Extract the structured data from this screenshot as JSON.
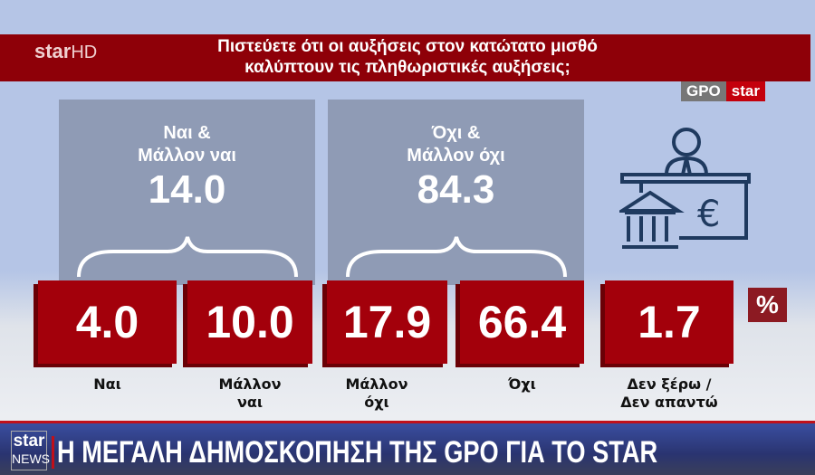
{
  "header": {
    "logo": "star",
    "logo_suffix": "HD",
    "question_line1": "Πιστεύετε ότι οι αυξήσεις στον κατώτατο μισθό",
    "question_line2": "καλύπτουν τις πληθωριστικές αυξήσεις;",
    "badge_left": "GPO",
    "badge_right": "star"
  },
  "chart_data": {
    "type": "table",
    "unit": "%",
    "groups": [
      {
        "label_line1": "Ναι &",
        "label_line2": "Μάλλον ναι",
        "value": "14.0"
      },
      {
        "label_line1": "Όχι &",
        "label_line2": "Μάλλον όχι",
        "value": "84.3"
      }
    ],
    "categories": [
      {
        "line1": "Ναι",
        "line2": "",
        "value": "4.0"
      },
      {
        "line1": "Μάλλον",
        "line2": "ναι",
        "value": "10.0"
      },
      {
        "line1": "Μάλλον",
        "line2": "όχι",
        "value": "17.9"
      },
      {
        "line1": "Όχι",
        "line2": "",
        "value": "66.4"
      },
      {
        "line1": "Δεν ξέρω /",
        "line2": "Δεν απαντώ",
        "value": "1.7"
      }
    ]
  },
  "icon": "bank-teller-euro-icon",
  "colors": {
    "accent": "#a3000b",
    "panel": "#8f9bb5",
    "background": "#b5c5e6"
  },
  "ticker": {
    "logo_top": "star",
    "logo_bottom": "NEWS",
    "text": "Η ΜΕΓΑΛΗ ΔΗΜΟΣΚΟΠΗΣΗ ΤΗΣ GPO ΓΙΑ ΤΟ STAR"
  }
}
